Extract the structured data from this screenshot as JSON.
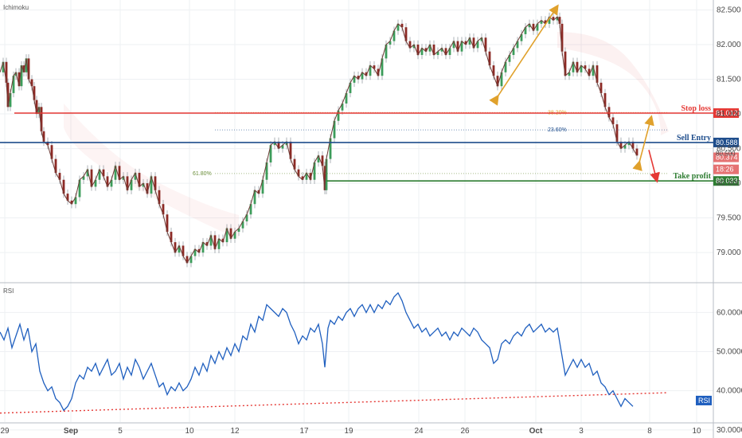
{
  "indicators": {
    "top": "Ichimoku",
    "bottom": "RSI"
  },
  "chart_data": [
    {
      "type": "line",
      "name": "candlestick",
      "ylim": [
        78.6,
        82.62
      ],
      "y_ticks": [
        "82.500",
        "82.000",
        "81.500",
        "81.000",
        "80.500",
        "80.000",
        "79.500",
        "79.000"
      ],
      "y_tick_values": [
        82.5,
        82.0,
        81.5,
        81.0,
        80.5,
        80.0,
        79.5,
        79.0
      ],
      "x_ticks": [
        "29",
        "Sep",
        "5",
        "10",
        "12",
        "17",
        "19",
        "24",
        "26",
        "Oct",
        "3",
        "8",
        "10"
      ],
      "close_path": [
        [
          0,
          81.6
        ],
        [
          4,
          81.75
        ],
        [
          8,
          81.45
        ],
        [
          10,
          81.1
        ],
        [
          13,
          81.3
        ],
        [
          17,
          81.55
        ],
        [
          20,
          81.6
        ],
        [
          24,
          81.4
        ],
        [
          27,
          81.7
        ],
        [
          30,
          81.6
        ],
        [
          33,
          81.8
        ],
        [
          36,
          81.5
        ],
        [
          40,
          81.4
        ],
        [
          43,
          81.2
        ],
        [
          46,
          81.0
        ],
        [
          49,
          81.1
        ],
        [
          52,
          80.75
        ],
        [
          55,
          80.6
        ],
        [
          60,
          80.55
        ],
        [
          65,
          80.35
        ],
        [
          70,
          80.15
        ],
        [
          75,
          80.05
        ],
        [
          80,
          79.85
        ],
        [
          85,
          79.75
        ],
        [
          90,
          79.7
        ],
        [
          95,
          79.8
        ],
        [
          100,
          80.05
        ],
        [
          105,
          80.1
        ],
        [
          110,
          80.2
        ],
        [
          115,
          79.95
        ],
        [
          120,
          80.05
        ],
        [
          125,
          80.2
        ],
        [
          130,
          80.1
        ],
        [
          135,
          79.95
        ],
        [
          140,
          80.05
        ],
        [
          145,
          80.25
        ],
        [
          150,
          80.05
        ],
        [
          155,
          80.1
        ],
        [
          160,
          79.9
        ],
        [
          165,
          80.05
        ],
        [
          170,
          80.15
        ],
        [
          175,
          79.95
        ],
        [
          180,
          80.0
        ],
        [
          185,
          79.85
        ],
        [
          190,
          80.1
        ],
        [
          195,
          79.9
        ],
        [
          200,
          79.7
        ],
        [
          205,
          79.55
        ],
        [
          210,
          79.3
        ],
        [
          215,
          79.15
        ],
        [
          220,
          79.0
        ],
        [
          225,
          79.1
        ],
        [
          230,
          78.95
        ],
        [
          235,
          78.85
        ],
        [
          240,
          78.95
        ],
        [
          245,
          79.05
        ],
        [
          250,
          79.0
        ],
        [
          255,
          79.15
        ],
        [
          260,
          79.1
        ],
        [
          265,
          79.25
        ],
        [
          270,
          79.05
        ],
        [
          275,
          79.2
        ],
        [
          280,
          79.15
        ],
        [
          285,
          79.35
        ],
        [
          290,
          79.2
        ],
        [
          295,
          79.3
        ],
        [
          300,
          79.35
        ],
        [
          305,
          79.45
        ],
        [
          310,
          79.55
        ],
        [
          315,
          79.7
        ],
        [
          320,
          79.9
        ],
        [
          325,
          79.85
        ],
        [
          330,
          80.05
        ],
        [
          335,
          80.3
        ],
        [
          340,
          80.55
        ],
        [
          345,
          80.6
        ],
        [
          350,
          80.5
        ],
        [
          355,
          80.55
        ],
        [
          360,
          80.6
        ],
        [
          365,
          80.35
        ],
        [
          370,
          80.2
        ],
        [
          375,
          80.1
        ],
        [
          380,
          80.05
        ],
        [
          385,
          80.15
        ],
        [
          390,
          80.05
        ],
        [
          395,
          80.3
        ],
        [
          400,
          80.4
        ],
        [
          405,
          80.25
        ],
        [
          408,
          79.9
        ],
        [
          410,
          80.35
        ],
        [
          415,
          80.65
        ],
        [
          420,
          80.9
        ],
        [
          425,
          81.05
        ],
        [
          430,
          81.15
        ],
        [
          435,
          81.3
        ],
        [
          440,
          81.45
        ],
        [
          445,
          81.55
        ],
        [
          450,
          81.5
        ],
        [
          455,
          81.6
        ],
        [
          460,
          81.55
        ],
        [
          465,
          81.7
        ],
        [
          470,
          81.65
        ],
        [
          475,
          81.55
        ],
        [
          480,
          81.8
        ],
        [
          485,
          82.0
        ],
        [
          490,
          82.05
        ],
        [
          495,
          82.2
        ],
        [
          500,
          82.3
        ],
        [
          505,
          82.25
        ],
        [
          510,
          82.05
        ],
        [
          515,
          81.95
        ],
        [
          520,
          82.0
        ],
        [
          525,
          81.85
        ],
        [
          530,
          81.95
        ],
        [
          535,
          81.9
        ],
        [
          540,
          82.0
        ],
        [
          545,
          81.85
        ],
        [
          550,
          81.9
        ],
        [
          555,
          81.95
        ],
        [
          560,
          81.85
        ],
        [
          565,
          81.95
        ],
        [
          570,
          82.05
        ],
        [
          575,
          81.9
        ],
        [
          580,
          82.05
        ],
        [
          585,
          82.0
        ],
        [
          590,
          82.1
        ],
        [
          595,
          81.95
        ],
        [
          600,
          82.05
        ],
        [
          605,
          82.1
        ],
        [
          610,
          81.9
        ],
        [
          615,
          81.7
        ],
        [
          620,
          81.55
        ],
        [
          625,
          81.4
        ],
        [
          630,
          81.6
        ],
        [
          635,
          81.75
        ],
        [
          640,
          81.85
        ],
        [
          645,
          81.95
        ],
        [
          650,
          82.05
        ],
        [
          655,
          82.15
        ],
        [
          660,
          82.25
        ],
        [
          665,
          82.3
        ],
        [
          670,
          82.2
        ],
        [
          675,
          82.3
        ],
        [
          680,
          82.35
        ],
        [
          685,
          82.3
        ],
        [
          690,
          82.4
        ],
        [
          695,
          82.35
        ],
        [
          700,
          82.4
        ],
        [
          703,
          82.3
        ],
        [
          706,
          81.9
        ],
        [
          710,
          81.55
        ],
        [
          715,
          81.6
        ],
        [
          720,
          81.75
        ],
        [
          725,
          81.6
        ],
        [
          730,
          81.7
        ],
        [
          735,
          81.65
        ],
        [
          740,
          81.55
        ],
        [
          745,
          81.7
        ],
        [
          750,
          81.45
        ],
        [
          755,
          81.3
        ],
        [
          760,
          81.1
        ],
        [
          765,
          80.95
        ],
        [
          770,
          80.85
        ],
        [
          775,
          80.6
        ],
        [
          780,
          80.5
        ],
        [
          785,
          80.55
        ],
        [
          790,
          80.6
        ],
        [
          795,
          80.5
        ],
        [
          800,
          80.4
        ]
      ],
      "levels": [
        {
          "label": "Stop loss",
          "value": 81.012,
          "tag": "81.012",
          "color": "#e53935"
        },
        {
          "label": "Sell Entry",
          "value": 80.588,
          "tag": "80.588",
          "color": "#1e4d8c"
        },
        {
          "label": "Take profit",
          "value": 80.033,
          "tag": "80.033",
          "color": "#2e7d32"
        }
      ],
      "fib_levels": [
        {
          "label": "61.80%",
          "value": 80.14,
          "color": "#6b8e3a"
        },
        {
          "label": "23.60%",
          "value": 80.77,
          "color": "#1e4d8c"
        },
        {
          "label": "38.20%",
          "value": 81.02,
          "color": "#e0a12c"
        }
      ],
      "price_tags": [
        {
          "text": "80.374",
          "value": 80.374,
          "color": "#e57373"
        },
        {
          "text": "18:26",
          "value": 80.2,
          "color": "#e57373"
        }
      ],
      "partial_tag": "80.500",
      "arrows": [
        {
          "from": [
            625,
            81.25
          ],
          "to": [
            700,
            82.55
          ],
          "color": "#e0a12c"
        },
        {
          "from": [
            803,
            80.3
          ],
          "to": [
            818,
            80.95
          ],
          "color": "#e0a12c"
        },
        {
          "from": [
            815,
            80.48
          ],
          "to": [
            825,
            80.04
          ],
          "color": "#e53935"
        }
      ],
      "grid": true
    },
    {
      "type": "line",
      "name": "RSI",
      "ylim": [
        32,
        67
      ],
      "y_ticks": [
        "60.0000",
        "50.0000",
        "40.0000",
        "30.0000"
      ],
      "y_tick_values": [
        60,
        50,
        40,
        30
      ],
      "series_tag": "RSI",
      "trendline": {
        "from": [
          0,
          34.3
        ],
        "to": [
          838,
          39.5
        ],
        "color": "#e53935"
      },
      "path": [
        [
          0,
          55
        ],
        [
          5,
          53
        ],
        [
          10,
          56
        ],
        [
          15,
          51
        ],
        [
          20,
          54
        ],
        [
          25,
          57
        ],
        [
          30,
          53
        ],
        [
          35,
          56
        ],
        [
          40,
          50
        ],
        [
          45,
          52
        ],
        [
          50,
          45
        ],
        [
          55,
          42
        ],
        [
          60,
          40
        ],
        [
          65,
          41
        ],
        [
          70,
          38
        ],
        [
          75,
          37
        ],
        [
          80,
          35
        ],
        [
          85,
          36
        ],
        [
          90,
          38
        ],
        [
          95,
          42
        ],
        [
          100,
          44
        ],
        [
          105,
          43
        ],
        [
          110,
          46
        ],
        [
          115,
          45
        ],
        [
          120,
          47
        ],
        [
          125,
          44
        ],
        [
          130,
          46
        ],
        [
          135,
          48
        ],
        [
          140,
          44
        ],
        [
          145,
          45
        ],
        [
          150,
          47
        ],
        [
          155,
          43
        ],
        [
          160,
          46
        ],
        [
          165,
          44
        ],
        [
          170,
          48
        ],
        [
          175,
          46
        ],
        [
          180,
          43
        ],
        [
          185,
          45
        ],
        [
          190,
          47
        ],
        [
          195,
          44
        ],
        [
          200,
          41
        ],
        [
          205,
          42
        ],
        [
          210,
          39
        ],
        [
          215,
          41
        ],
        [
          220,
          40
        ],
        [
          225,
          42
        ],
        [
          230,
          40
        ],
        [
          235,
          41
        ],
        [
          240,
          43
        ],
        [
          245,
          46
        ],
        [
          250,
          44
        ],
        [
          255,
          47
        ],
        [
          260,
          45
        ],
        [
          265,
          49
        ],
        [
          270,
          47
        ],
        [
          275,
          50
        ],
        [
          280,
          48
        ],
        [
          285,
          51
        ],
        [
          290,
          49
        ],
        [
          295,
          52
        ],
        [
          300,
          50
        ],
        [
          305,
          54
        ],
        [
          310,
          53
        ],
        [
          315,
          57
        ],
        [
          320,
          55
        ],
        [
          325,
          59
        ],
        [
          330,
          58
        ],
        [
          335,
          62
        ],
        [
          340,
          61
        ],
        [
          345,
          60
        ],
        [
          350,
          59
        ],
        [
          355,
          61
        ],
        [
          360,
          60
        ],
        [
          365,
          57
        ],
        [
          370,
          55
        ],
        [
          375,
          52
        ],
        [
          380,
          54
        ],
        [
          385,
          53
        ],
        [
          390,
          56
        ],
        [
          395,
          55
        ],
        [
          400,
          57
        ],
        [
          405,
          52
        ],
        [
          408,
          46
        ],
        [
          412,
          56
        ],
        [
          415,
          58
        ],
        [
          420,
          57
        ],
        [
          425,
          59
        ],
        [
          430,
          58
        ],
        [
          435,
          60
        ],
        [
          440,
          61
        ],
        [
          445,
          59
        ],
        [
          450,
          61
        ],
        [
          455,
          62
        ],
        [
          460,
          60
        ],
        [
          465,
          62
        ],
        [
          470,
          60
        ],
        [
          475,
          62
        ],
        [
          480,
          61
        ],
        [
          485,
          63
        ],
        [
          490,
          62
        ],
        [
          495,
          64
        ],
        [
          500,
          65
        ],
        [
          505,
          63
        ],
        [
          510,
          60
        ],
        [
          515,
          58
        ],
        [
          520,
          56
        ],
        [
          525,
          57
        ],
        [
          530,
          55
        ],
        [
          535,
          56
        ],
        [
          540,
          54
        ],
        [
          545,
          55
        ],
        [
          550,
          56
        ],
        [
          555,
          54
        ],
        [
          560,
          55
        ],
        [
          565,
          53
        ],
        [
          570,
          55
        ],
        [
          575,
          54
        ],
        [
          580,
          56
        ],
        [
          585,
          55
        ],
        [
          590,
          54
        ],
        [
          595,
          56
        ],
        [
          600,
          55
        ],
        [
          605,
          53
        ],
        [
          610,
          52
        ],
        [
          615,
          51
        ],
        [
          620,
          47
        ],
        [
          625,
          48
        ],
        [
          630,
          52
        ],
        [
          635,
          53
        ],
        [
          640,
          52
        ],
        [
          645,
          54
        ],
        [
          650,
          55
        ],
        [
          655,
          54
        ],
        [
          660,
          56
        ],
        [
          665,
          57
        ],
        [
          670,
          55
        ],
        [
          675,
          56
        ],
        [
          680,
          57
        ],
        [
          685,
          55
        ],
        [
          690,
          56
        ],
        [
          695,
          55
        ],
        [
          700,
          56
        ],
        [
          705,
          50
        ],
        [
          710,
          44
        ],
        [
          715,
          46
        ],
        [
          720,
          48
        ],
        [
          725,
          46
        ],
        [
          730,
          48
        ],
        [
          735,
          46
        ],
        [
          740,
          47
        ],
        [
          745,
          44
        ],
        [
          750,
          45
        ],
        [
          755,
          42
        ],
        [
          760,
          41
        ],
        [
          765,
          39
        ],
        [
          770,
          40
        ],
        [
          775,
          38
        ],
        [
          780,
          36
        ],
        [
          785,
          38
        ],
        [
          790,
          37
        ],
        [
          795,
          36
        ]
      ],
      "grid": true
    }
  ]
}
